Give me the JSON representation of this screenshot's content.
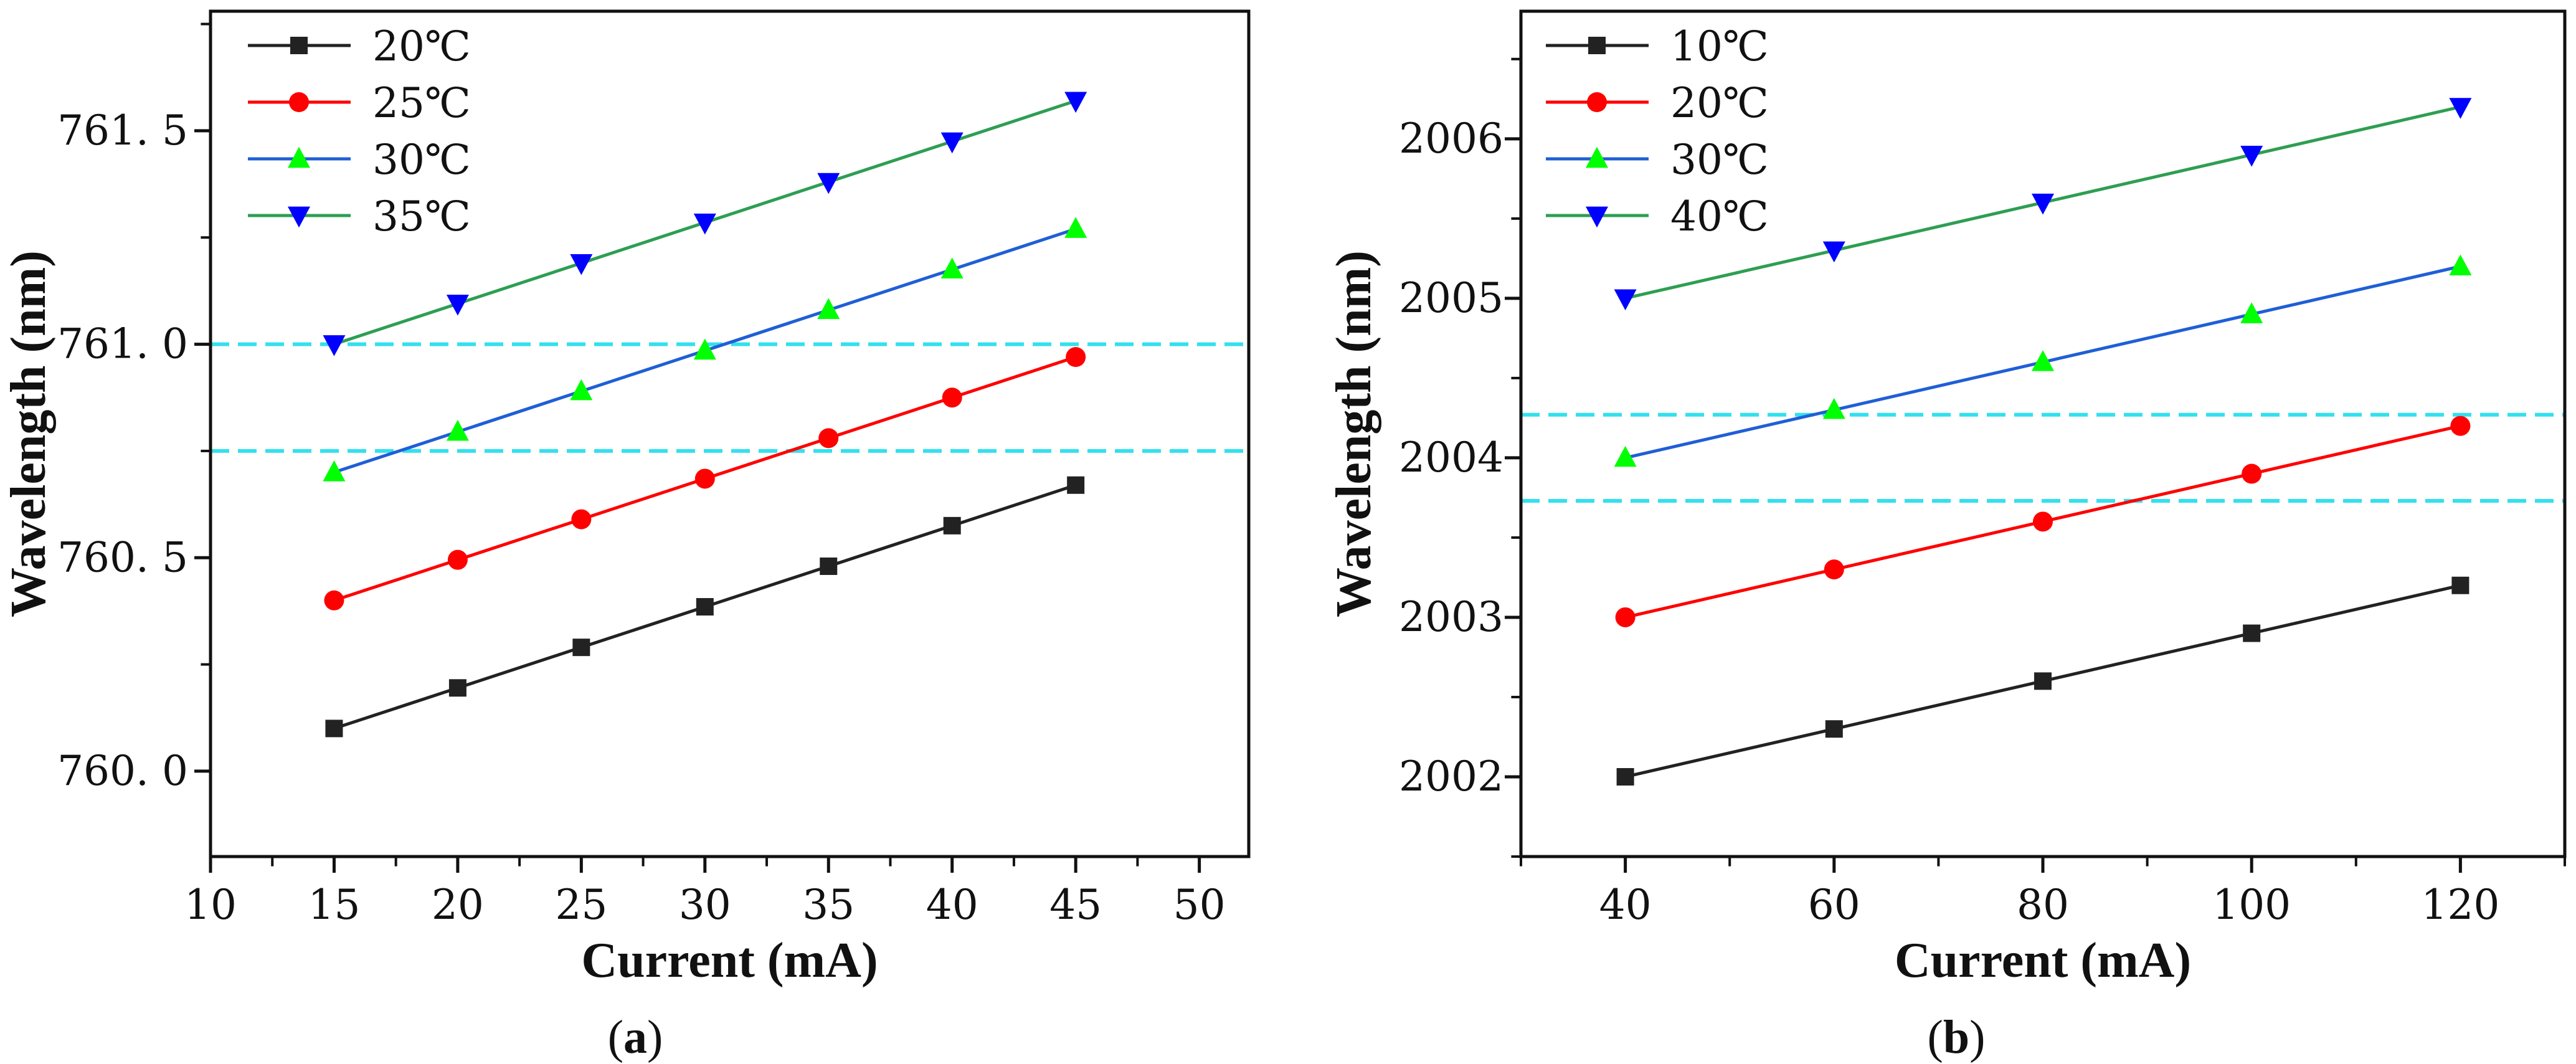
{
  "chart_data": [
    {
      "type": "line",
      "panel_label": {
        "open": "(",
        "letter": "a",
        "close": ")"
      },
      "xlabel": "Current (mA)",
      "ylabel": "Wavelength (nm)",
      "xlim": [
        10,
        52
      ],
      "ylim": [
        759.8,
        761.78
      ],
      "x_ticks": [
        10,
        15,
        20,
        25,
        30,
        35,
        40,
        45,
        50
      ],
      "y_ticks": [
        760.0,
        760.5,
        761.0,
        761.5
      ],
      "y_tick_labels": [
        "760. 0",
        "760. 5",
        "761. 0",
        "761. 5"
      ],
      "reference_lines": [
        761.0,
        760.75
      ],
      "legend_position": "top-left",
      "series": [
        {
          "name": "20℃",
          "color": "#222222",
          "marker": "square",
          "x": [
            15,
            20,
            25,
            30,
            35,
            40,
            45
          ],
          "y": [
            760.1,
            760.195,
            760.29,
            760.385,
            760.48,
            760.575,
            760.67
          ]
        },
        {
          "name": "25℃",
          "color": "#ff0000",
          "marker": "circle",
          "x": [
            15,
            20,
            25,
            30,
            35,
            40,
            45
          ],
          "y": [
            760.4,
            760.495,
            760.59,
            760.685,
            760.78,
            760.875,
            760.97
          ]
        },
        {
          "name": "30℃",
          "color": "#00ff00",
          "line_color": "#1f5fd6",
          "marker": "triangle-up",
          "x": [
            15,
            20,
            25,
            30,
            35,
            40,
            45
          ],
          "y": [
            760.7,
            760.795,
            760.89,
            760.985,
            761.08,
            761.175,
            761.27
          ]
        },
        {
          "name": "35℃",
          "color": "#0000ff",
          "line_color": "#2e9e52",
          "marker": "triangle-down",
          "x": [
            15,
            20,
            25,
            30,
            35,
            40,
            45
          ],
          "y": [
            761.0,
            761.095,
            761.19,
            761.285,
            761.38,
            761.475,
            761.57
          ]
        }
      ]
    },
    {
      "type": "line",
      "panel_label": {
        "open": "(",
        "letter": "b",
        "close": ")"
      },
      "xlabel": "Current (mA)",
      "ylabel": "Wavelength (nm)",
      "xlim": [
        30,
        130
      ],
      "ylim": [
        2001.5,
        2006.8
      ],
      "x_ticks": [
        40,
        60,
        80,
        100,
        120
      ],
      "y_ticks": [
        2002,
        2003,
        2004,
        2005,
        2006
      ],
      "y_tick_labels": [
        "2002",
        "2003",
        "2004",
        "2005",
        "2006"
      ],
      "reference_lines": [
        2004.27,
        2003.73
      ],
      "legend_position": "top-left",
      "series": [
        {
          "name": "10℃",
          "color": "#222222",
          "marker": "square",
          "x": [
            40,
            60,
            80,
            100,
            120
          ],
          "y": [
            2002.0,
            2002.3,
            2002.6,
            2002.9,
            2003.2
          ]
        },
        {
          "name": "20℃",
          "color": "#ff0000",
          "marker": "circle",
          "x": [
            40,
            60,
            80,
            100,
            120
          ],
          "y": [
            2003.0,
            2003.3,
            2003.6,
            2003.9,
            2004.2
          ]
        },
        {
          "name": "30℃",
          "color": "#00ff00",
          "line_color": "#1f5fd6",
          "marker": "triangle-up",
          "x": [
            40,
            60,
            80,
            100,
            120
          ],
          "y": [
            2004.0,
            2004.3,
            2004.6,
            2004.9,
            2005.2
          ]
        },
        {
          "name": "40℃",
          "color": "#0000ff",
          "line_color": "#2e9e52",
          "marker": "triangle-down",
          "x": [
            40,
            60,
            80,
            100,
            120
          ],
          "y": [
            2005.0,
            2005.3,
            2005.6,
            2005.9,
            2006.2
          ]
        }
      ]
    }
  ]
}
